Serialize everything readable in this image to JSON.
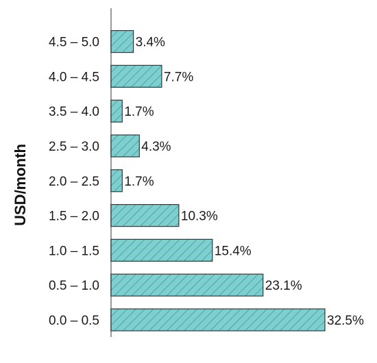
{
  "chart_data": {
    "type": "bar",
    "orientation": "horizontal",
    "categories": [
      "0.0 – 0.5",
      "0.5 – 1.0",
      "1.0 – 1.5",
      "1.5 – 2.0",
      "2.0 – 2.5",
      "2.5 – 3.0",
      "3.5 – 4.0",
      "4.0 – 4.5",
      "4.5 – 5.0"
    ],
    "values": [
      32.5,
      23.1,
      15.4,
      10.3,
      1.7,
      4.3,
      1.7,
      7.7,
      3.4
    ],
    "value_labels": [
      "32.5%",
      "23.1%",
      "15.4%",
      "10.3%",
      "1.7%",
      "4.3%",
      "1.7%",
      "7.7%",
      "3.4%"
    ],
    "ylabel": "USD/month",
    "xlabel": "",
    "title": "",
    "grid": false,
    "legend": "none",
    "colors": {
      "bar_fill": "#7ecfcf",
      "bar_stroke": "#2f3a3a",
      "hatch": "#3f8f8f",
      "axis": "#9a9a9a"
    }
  }
}
